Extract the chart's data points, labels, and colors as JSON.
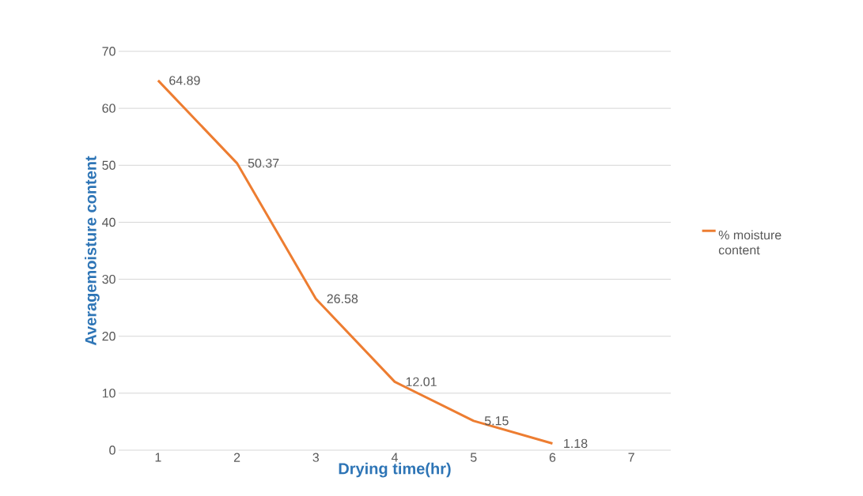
{
  "chart_data": {
    "type": "line",
    "xlabel": "Drying time(hr)",
    "ylabel": "Averagemoisture content",
    "categories": [
      "1",
      "2",
      "3",
      "4",
      "5",
      "6",
      "7"
    ],
    "series": [
      {
        "name": "% moisture content",
        "color": "#ed7d31",
        "values": [
          64.89,
          50.37,
          26.58,
          12.01,
          5.15,
          1.18,
          null
        ]
      }
    ],
    "ylim": [
      0,
      70
    ],
    "yticks": [
      0,
      10,
      20,
      30,
      40,
      50,
      60,
      70
    ],
    "grid": "y",
    "legend": "right",
    "data_labels": true
  }
}
